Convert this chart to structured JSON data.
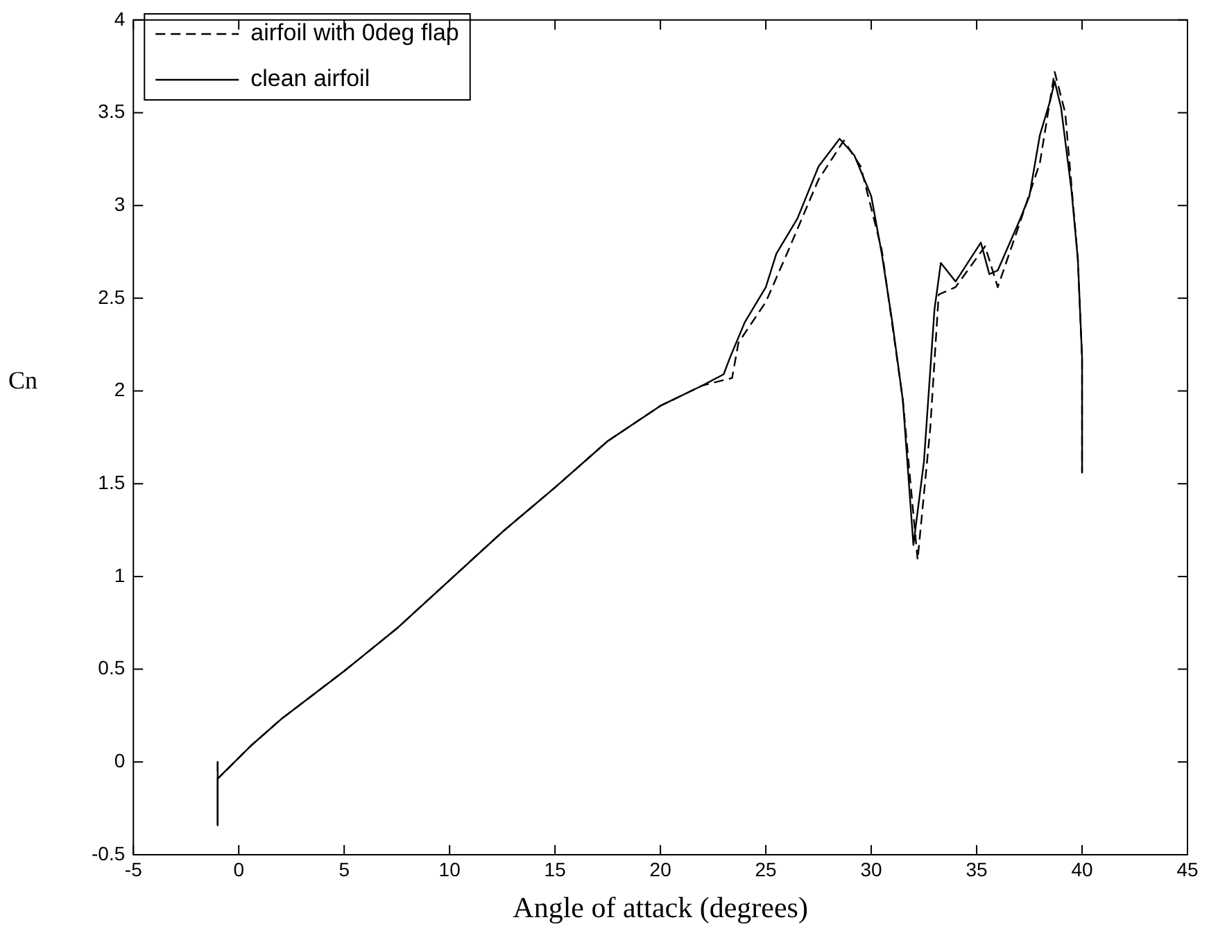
{
  "chart_data": {
    "type": "line",
    "xlabel": "Angle of attack (degrees)",
    "ylabel": "Cn",
    "xlim": [
      -5,
      45
    ],
    "xticks": [
      -5,
      0,
      5,
      10,
      15,
      20,
      25,
      30,
      35,
      40,
      45
    ],
    "ylim": [
      -0.5,
      4
    ],
    "yticks": [
      -0.5,
      0,
      0.5,
      1,
      1.5,
      2,
      2.5,
      3,
      3.5,
      4
    ],
    "grid": false,
    "legend": "top left",
    "marker": "none",
    "series": [
      {
        "name": "airfoil with 0deg flap",
        "color": "#000000",
        "line_style": "dashed",
        "x": [
          -1,
          -1,
          -1,
          0.6,
          2,
          5,
          7.5,
          10,
          12.5,
          15,
          17.5,
          20,
          22,
          23.4,
          23.7,
          25,
          26,
          27.5,
          28.7,
          29.5,
          30.5,
          31.5,
          32.2,
          32.8,
          33.2,
          34,
          35.4,
          36,
          37,
          38,
          38.7,
          39.2,
          39.8,
          40,
          40
        ],
        "values": [
          0,
          -0.34,
          -0.09,
          0.09,
          0.23,
          0.49,
          0.72,
          0.98,
          1.24,
          1.48,
          1.73,
          1.92,
          2.03,
          2.07,
          2.26,
          2.48,
          2.74,
          3.14,
          3.35,
          3.21,
          2.76,
          1.95,
          1.09,
          1.8,
          2.52,
          2.56,
          2.78,
          2.56,
          2.89,
          3.23,
          3.72,
          3.5,
          2.71,
          2.18,
          1.56
        ]
      },
      {
        "name": "clean airfoil",
        "color": "#000000",
        "line_style": "solid",
        "x": [
          -1,
          -1,
          -1,
          0.6,
          2,
          5,
          7.5,
          10,
          12.5,
          15,
          17.5,
          20,
          22,
          23,
          23.3,
          24,
          25,
          25.5,
          26.5,
          27.5,
          28.5,
          29.2,
          30,
          30.5,
          31,
          31.5,
          32,
          32.5,
          33,
          33.3,
          34,
          35.2,
          35.6,
          36,
          37,
          37.5,
          38,
          38.5,
          38.7,
          39,
          39.5,
          39.8,
          40,
          40
        ],
        "values": [
          0,
          -0.34,
          -0.09,
          0.09,
          0.23,
          0.49,
          0.72,
          0.98,
          1.24,
          1.48,
          1.73,
          1.92,
          2.03,
          2.09,
          2.18,
          2.37,
          2.56,
          2.74,
          2.93,
          3.21,
          3.36,
          3.27,
          3.05,
          2.74,
          2.37,
          1.95,
          1.17,
          1.62,
          2.44,
          2.69,
          2.59,
          2.8,
          2.63,
          2.65,
          2.91,
          3.05,
          3.38,
          3.57,
          3.67,
          3.53,
          3.08,
          2.71,
          2.18,
          1.56
        ]
      }
    ]
  }
}
